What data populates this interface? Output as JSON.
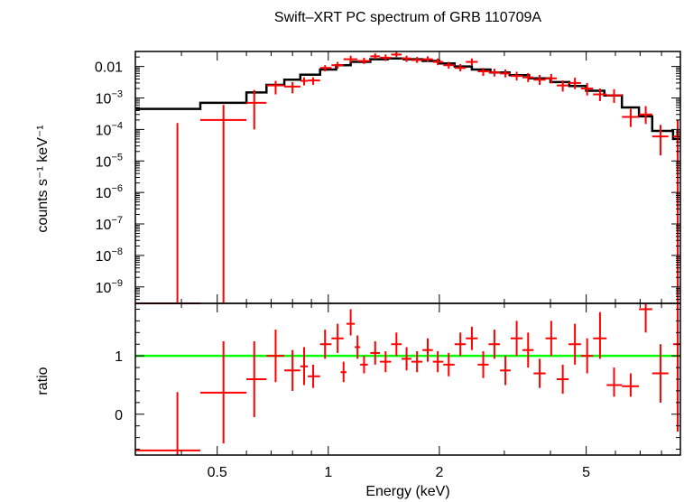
{
  "chart_data": {
    "title": "Swift–XRT PC spectrum of GRB 110709A",
    "xlabel": "Energy (keV)",
    "xscale": "log",
    "xlim": [
      0.3,
      9.0
    ],
    "xticks": [
      {
        "v": 0.5,
        "label": "0.5"
      },
      {
        "v": 1,
        "label": "1"
      },
      {
        "v": 2,
        "label": "2"
      },
      {
        "v": 5,
        "label": "5"
      }
    ],
    "top_panel": {
      "type": "scatter",
      "ylabel": "counts s⁻¹ keV⁻¹",
      "yscale": "log",
      "ylim": [
        3e-10,
        0.03
      ],
      "yticks": [
        {
          "v": 0.01,
          "base": "0.01",
          "exp": ""
        },
        {
          "v": 0.001,
          "base": "10",
          "exp": "−3"
        },
        {
          "v": 0.0001,
          "base": "10",
          "exp": "−4"
        },
        {
          "v": 1e-05,
          "base": "10",
          "exp": "−5"
        },
        {
          "v": 1e-06,
          "base": "10",
          "exp": "−6"
        },
        {
          "v": 1e-07,
          "base": "10",
          "exp": "−7"
        },
        {
          "v": 1e-08,
          "base": "10",
          "exp": "−8"
        },
        {
          "v": 1e-09,
          "base": "10",
          "exp": "−9"
        }
      ],
      "data_color": "#ff0000",
      "model_color": "#000000",
      "data": [
        {
          "x": 0.39,
          "xlo": 0.3,
          "xhi": 0.45,
          "y": 3e-10,
          "ylo": 3e-10,
          "yhi": 0.00016
        },
        {
          "x": 0.52,
          "xlo": 0.45,
          "xhi": 0.6,
          "y": 0.0002,
          "ylo": 3e-10,
          "yhi": 0.0006
        },
        {
          "x": 0.63,
          "xlo": 0.6,
          "xhi": 0.68,
          "y": 0.0007,
          "ylo": 0.0001,
          "yhi": 0.0018
        },
        {
          "x": 0.72,
          "xlo": 0.68,
          "xhi": 0.76,
          "y": 0.0025,
          "ylo": 0.0013,
          "yhi": 0.0035
        },
        {
          "x": 0.8,
          "xlo": 0.76,
          "xhi": 0.84,
          "y": 0.0023,
          "ylo": 0.0014,
          "yhi": 0.0032
        },
        {
          "x": 0.86,
          "xlo": 0.84,
          "xhi": 0.88,
          "y": 0.0035,
          "ylo": 0.0025,
          "yhi": 0.0045
        },
        {
          "x": 0.91,
          "xlo": 0.88,
          "xhi": 0.95,
          "y": 0.0036,
          "ylo": 0.0026,
          "yhi": 0.0045
        },
        {
          "x": 0.98,
          "xlo": 0.95,
          "xhi": 1.02,
          "y": 0.009,
          "ylo": 0.007,
          "yhi": 0.011
        },
        {
          "x": 1.06,
          "xlo": 1.02,
          "xhi": 1.1,
          "y": 0.011,
          "ylo": 0.0085,
          "yhi": 0.014
        },
        {
          "x": 1.15,
          "xlo": 1.1,
          "xhi": 1.2,
          "y": 0.017,
          "ylo": 0.013,
          "yhi": 0.022
        },
        {
          "x": 1.25,
          "xlo": 1.2,
          "xhi": 1.3,
          "y": 0.015,
          "ylo": 0.012,
          "yhi": 0.019
        },
        {
          "x": 1.34,
          "xlo": 1.3,
          "xhi": 1.38,
          "y": 0.021,
          "ylo": 0.017,
          "yhi": 0.026
        },
        {
          "x": 1.43,
          "xlo": 1.38,
          "xhi": 1.48,
          "y": 0.019,
          "ylo": 0.015,
          "yhi": 0.024
        },
        {
          "x": 1.53,
          "xlo": 1.48,
          "xhi": 1.58,
          "y": 0.024,
          "ylo": 0.02,
          "yhi": 0.029
        },
        {
          "x": 1.63,
          "xlo": 1.58,
          "xhi": 1.68,
          "y": 0.018,
          "ylo": 0.014,
          "yhi": 0.022
        },
        {
          "x": 1.74,
          "xlo": 1.68,
          "xhi": 1.8,
          "y": 0.016,
          "ylo": 0.013,
          "yhi": 0.02
        },
        {
          "x": 1.86,
          "xlo": 1.8,
          "xhi": 1.92,
          "y": 0.017,
          "ylo": 0.014,
          "yhi": 0.021
        },
        {
          "x": 1.98,
          "xlo": 1.92,
          "xhi": 2.05,
          "y": 0.014,
          "ylo": 0.011,
          "yhi": 0.018
        },
        {
          "x": 2.12,
          "xlo": 2.05,
          "xhi": 2.2,
          "y": 0.011,
          "ylo": 0.0085,
          "yhi": 0.014
        },
        {
          "x": 2.28,
          "xlo": 2.2,
          "xhi": 2.36,
          "y": 0.009,
          "ylo": 0.007,
          "yhi": 0.012
        },
        {
          "x": 2.45,
          "xlo": 2.36,
          "xhi": 2.54,
          "y": 0.014,
          "ylo": 0.011,
          "yhi": 0.018
        },
        {
          "x": 2.63,
          "xlo": 2.54,
          "xhi": 2.72,
          "y": 0.007,
          "ylo": 0.005,
          "yhi": 0.009
        },
        {
          "x": 2.82,
          "xlo": 2.72,
          "xhi": 2.92,
          "y": 0.0065,
          "ylo": 0.0048,
          "yhi": 0.0085
        },
        {
          "x": 3.02,
          "xlo": 2.92,
          "xhi": 3.12,
          "y": 0.006,
          "ylo": 0.0045,
          "yhi": 0.008
        },
        {
          "x": 3.24,
          "xlo": 3.12,
          "xhi": 3.36,
          "y": 0.005,
          "ylo": 0.0036,
          "yhi": 0.0068
        },
        {
          "x": 3.48,
          "xlo": 3.36,
          "xhi": 3.6,
          "y": 0.0045,
          "ylo": 0.0032,
          "yhi": 0.0062
        },
        {
          "x": 3.74,
          "xlo": 3.6,
          "xhi": 3.88,
          "y": 0.0038,
          "ylo": 0.0026,
          "yhi": 0.0054
        },
        {
          "x": 4.02,
          "xlo": 3.88,
          "xhi": 4.16,
          "y": 0.0042,
          "ylo": 0.0029,
          "yhi": 0.0058
        },
        {
          "x": 4.32,
          "xlo": 4.16,
          "xhi": 4.48,
          "y": 0.0025,
          "ylo": 0.0016,
          "yhi": 0.0036
        },
        {
          "x": 4.66,
          "xlo": 4.48,
          "xhi": 4.84,
          "y": 0.003,
          "ylo": 0.0019,
          "yhi": 0.0044
        },
        {
          "x": 5.03,
          "xlo": 4.84,
          "xhi": 5.22,
          "y": 0.002,
          "ylo": 0.0012,
          "yhi": 0.003
        },
        {
          "x": 5.45,
          "xlo": 5.22,
          "xhi": 5.68,
          "y": 0.0013,
          "ylo": 0.0008,
          "yhi": 0.002
        },
        {
          "x": 5.95,
          "xlo": 5.68,
          "xhi": 6.25,
          "y": 0.0012,
          "ylo": 0.0007,
          "yhi": 0.0019
        },
        {
          "x": 6.6,
          "xlo": 6.25,
          "xhi": 6.95,
          "y": 0.00025,
          "ylo": 0.00012,
          "yhi": 0.00045
        },
        {
          "x": 7.25,
          "xlo": 6.95,
          "xhi": 7.55,
          "y": 0.0003,
          "ylo": 0.00015,
          "yhi": 0.00055
        },
        {
          "x": 7.95,
          "xlo": 7.55,
          "xhi": 8.35,
          "y": 6e-05,
          "ylo": 1.5e-05,
          "yhi": 0.00014
        },
        {
          "x": 8.85,
          "xlo": 8.6,
          "xhi": 9.0,
          "y": 6e-05,
          "ylo": 3e-10,
          "yhi": 0.0002
        }
      ],
      "model_steps": [
        {
          "x0": 0.3,
          "x1": 0.45,
          "y": 0.00045
        },
        {
          "x0": 0.45,
          "x1": 0.6,
          "y": 0.0007
        },
        {
          "x0": 0.6,
          "x1": 0.68,
          "y": 0.0015
        },
        {
          "x0": 0.68,
          "x1": 0.76,
          "y": 0.0026
        },
        {
          "x0": 0.76,
          "x1": 0.84,
          "y": 0.0038
        },
        {
          "x0": 0.84,
          "x1": 0.95,
          "y": 0.0055
        },
        {
          "x0": 0.95,
          "x1": 1.05,
          "y": 0.008
        },
        {
          "x0": 1.05,
          "x1": 1.15,
          "y": 0.011
        },
        {
          "x0": 1.15,
          "x1": 1.3,
          "y": 0.014
        },
        {
          "x0": 1.3,
          "x1": 1.45,
          "y": 0.017
        },
        {
          "x0": 1.45,
          "x1": 1.6,
          "y": 0.018
        },
        {
          "x0": 1.6,
          "x1": 1.8,
          "y": 0.017
        },
        {
          "x0": 1.8,
          "x1": 2.0,
          "y": 0.015
        },
        {
          "x0": 2.0,
          "x1": 2.2,
          "y": 0.0125
        },
        {
          "x0": 2.2,
          "x1": 2.45,
          "y": 0.01
        },
        {
          "x0": 2.45,
          "x1": 2.75,
          "y": 0.008
        },
        {
          "x0": 2.75,
          "x1": 3.1,
          "y": 0.0065
        },
        {
          "x0": 3.1,
          "x1": 3.5,
          "y": 0.0053
        },
        {
          "x0": 3.5,
          "x1": 4.0,
          "y": 0.0042
        },
        {
          "x0": 4.0,
          "x1": 4.5,
          "y": 0.0032
        },
        {
          "x0": 4.5,
          "x1": 5.0,
          "y": 0.0024
        },
        {
          "x0": 5.0,
          "x1": 5.6,
          "y": 0.0017
        },
        {
          "x0": 5.6,
          "x1": 6.25,
          "y": 0.0012
        },
        {
          "x0": 6.25,
          "x1": 6.95,
          "y": 0.0005
        },
        {
          "x0": 6.95,
          "x1": 7.55,
          "y": 0.00026
        },
        {
          "x0": 7.55,
          "x1": 8.6,
          "y": 9e-05
        },
        {
          "x0": 8.6,
          "x1": 9.0,
          "y": 5e-05
        }
      ]
    },
    "bottom_panel": {
      "type": "scatter",
      "ylabel": "ratio",
      "ylim": [
        -0.7,
        1.9
      ],
      "yticks": [
        {
          "v": 0,
          "label": "0"
        },
        {
          "v": 1,
          "label": "1"
        }
      ],
      "reference_line": {
        "y": 1,
        "color": "#00ff00"
      },
      "data": [
        {
          "x": 0.39,
          "xlo": 0.3,
          "xhi": 0.45,
          "y": -0.62,
          "ylo": -0.7,
          "yhi": 0.38
        },
        {
          "x": 0.52,
          "xlo": 0.45,
          "xhi": 0.6,
          "y": 0.37,
          "ylo": -0.5,
          "yhi": 1.25
        },
        {
          "x": 0.63,
          "xlo": 0.6,
          "xhi": 0.68,
          "y": 0.6,
          "ylo": -0.05,
          "yhi": 1.25
        },
        {
          "x": 0.72,
          "xlo": 0.68,
          "xhi": 0.76,
          "y": 1.0,
          "ylo": 0.55,
          "yhi": 1.45
        },
        {
          "x": 0.8,
          "xlo": 0.76,
          "xhi": 0.84,
          "y": 0.75,
          "ylo": 0.4,
          "yhi": 1.1
        },
        {
          "x": 0.86,
          "xlo": 0.84,
          "xhi": 0.88,
          "y": 0.82,
          "ylo": 0.5,
          "yhi": 1.15
        },
        {
          "x": 0.91,
          "xlo": 0.88,
          "xhi": 0.95,
          "y": 0.65,
          "ylo": 0.45,
          "yhi": 0.85
        },
        {
          "x": 0.98,
          "xlo": 0.95,
          "xhi": 1.02,
          "y": 1.2,
          "ylo": 0.95,
          "yhi": 1.45
        },
        {
          "x": 1.06,
          "xlo": 1.02,
          "xhi": 1.1,
          "y": 1.3,
          "ylo": 1.05,
          "yhi": 1.55
        },
        {
          "x": 1.1,
          "xlo": 1.08,
          "xhi": 1.12,
          "y": 0.72,
          "ylo": 0.55,
          "yhi": 0.9
        },
        {
          "x": 1.15,
          "xlo": 1.12,
          "xhi": 1.18,
          "y": 1.55,
          "ylo": 1.35,
          "yhi": 1.8
        },
        {
          "x": 1.2,
          "xlo": 1.18,
          "xhi": 1.22,
          "y": 1.15,
          "ylo": 0.95,
          "yhi": 1.35
        },
        {
          "x": 1.25,
          "xlo": 1.22,
          "xhi": 1.28,
          "y": 0.85,
          "ylo": 0.7,
          "yhi": 1.0
        },
        {
          "x": 1.34,
          "xlo": 1.3,
          "xhi": 1.38,
          "y": 1.05,
          "ylo": 0.85,
          "yhi": 1.25
        },
        {
          "x": 1.43,
          "xlo": 1.38,
          "xhi": 1.48,
          "y": 0.9,
          "ylo": 0.72,
          "yhi": 1.08
        },
        {
          "x": 1.53,
          "xlo": 1.48,
          "xhi": 1.58,
          "y": 1.2,
          "ylo": 1.0,
          "yhi": 1.4
        },
        {
          "x": 1.63,
          "xlo": 1.58,
          "xhi": 1.68,
          "y": 0.95,
          "ylo": 0.75,
          "yhi": 1.15
        },
        {
          "x": 1.74,
          "xlo": 1.68,
          "xhi": 1.8,
          "y": 0.9,
          "ylo": 0.72,
          "yhi": 1.08
        },
        {
          "x": 1.86,
          "xlo": 1.8,
          "xhi": 1.92,
          "y": 1.1,
          "ylo": 0.9,
          "yhi": 1.3
        },
        {
          "x": 1.98,
          "xlo": 1.92,
          "xhi": 2.05,
          "y": 0.9,
          "ylo": 0.72,
          "yhi": 1.08
        },
        {
          "x": 2.12,
          "xlo": 2.05,
          "xhi": 2.2,
          "y": 0.85,
          "ylo": 0.65,
          "yhi": 1.05
        },
        {
          "x": 2.28,
          "xlo": 2.2,
          "xhi": 2.36,
          "y": 1.2,
          "ylo": 1.0,
          "yhi": 1.4
        },
        {
          "x": 2.45,
          "xlo": 2.36,
          "xhi": 2.54,
          "y": 1.3,
          "ylo": 1.1,
          "yhi": 1.5
        },
        {
          "x": 2.63,
          "xlo": 2.54,
          "xhi": 2.72,
          "y": 0.85,
          "ylo": 0.62,
          "yhi": 1.08
        },
        {
          "x": 2.82,
          "xlo": 2.72,
          "xhi": 2.92,
          "y": 1.2,
          "ylo": 0.95,
          "yhi": 1.45
        },
        {
          "x": 3.02,
          "xlo": 2.92,
          "xhi": 3.12,
          "y": 0.75,
          "ylo": 0.5,
          "yhi": 1.0
        },
        {
          "x": 3.24,
          "xlo": 3.12,
          "xhi": 3.36,
          "y": 1.3,
          "ylo": 1.0,
          "yhi": 1.6
        },
        {
          "x": 3.48,
          "xlo": 3.36,
          "xhi": 3.6,
          "y": 1.1,
          "ylo": 0.8,
          "yhi": 1.4
        },
        {
          "x": 3.74,
          "xlo": 3.6,
          "xhi": 3.88,
          "y": 0.7,
          "ylo": 0.45,
          "yhi": 0.95
        },
        {
          "x": 4.02,
          "xlo": 3.88,
          "xhi": 4.16,
          "y": 1.3,
          "ylo": 1.0,
          "yhi": 1.6
        },
        {
          "x": 4.32,
          "xlo": 4.16,
          "xhi": 4.48,
          "y": 0.6,
          "ylo": 0.35,
          "yhi": 0.85
        },
        {
          "x": 4.66,
          "xlo": 4.48,
          "xhi": 4.84,
          "y": 1.2,
          "ylo": 0.85,
          "yhi": 1.55
        },
        {
          "x": 5.03,
          "xlo": 4.84,
          "xhi": 5.22,
          "y": 1.0,
          "ylo": 0.7,
          "yhi": 1.3
        },
        {
          "x": 5.45,
          "xlo": 5.22,
          "xhi": 5.68,
          "y": 1.3,
          "ylo": 0.95,
          "yhi": 1.75
        },
        {
          "x": 5.95,
          "xlo": 5.68,
          "xhi": 6.25,
          "y": 0.5,
          "ylo": 0.3,
          "yhi": 0.8
        },
        {
          "x": 6.6,
          "xlo": 6.25,
          "xhi": 6.95,
          "y": 0.48,
          "ylo": 0.3,
          "yhi": 0.7
        },
        {
          "x": 7.25,
          "xlo": 6.95,
          "xhi": 7.55,
          "y": 1.8,
          "ylo": 1.4,
          "yhi": 1.9
        },
        {
          "x": 7.95,
          "xlo": 7.55,
          "xhi": 8.35,
          "y": 0.7,
          "ylo": 0.2,
          "yhi": 1.2
        },
        {
          "x": 8.85,
          "xlo": 8.6,
          "xhi": 9.0,
          "y": 1.2,
          "ylo": -0.3,
          "yhi": 1.9
        }
      ]
    }
  }
}
